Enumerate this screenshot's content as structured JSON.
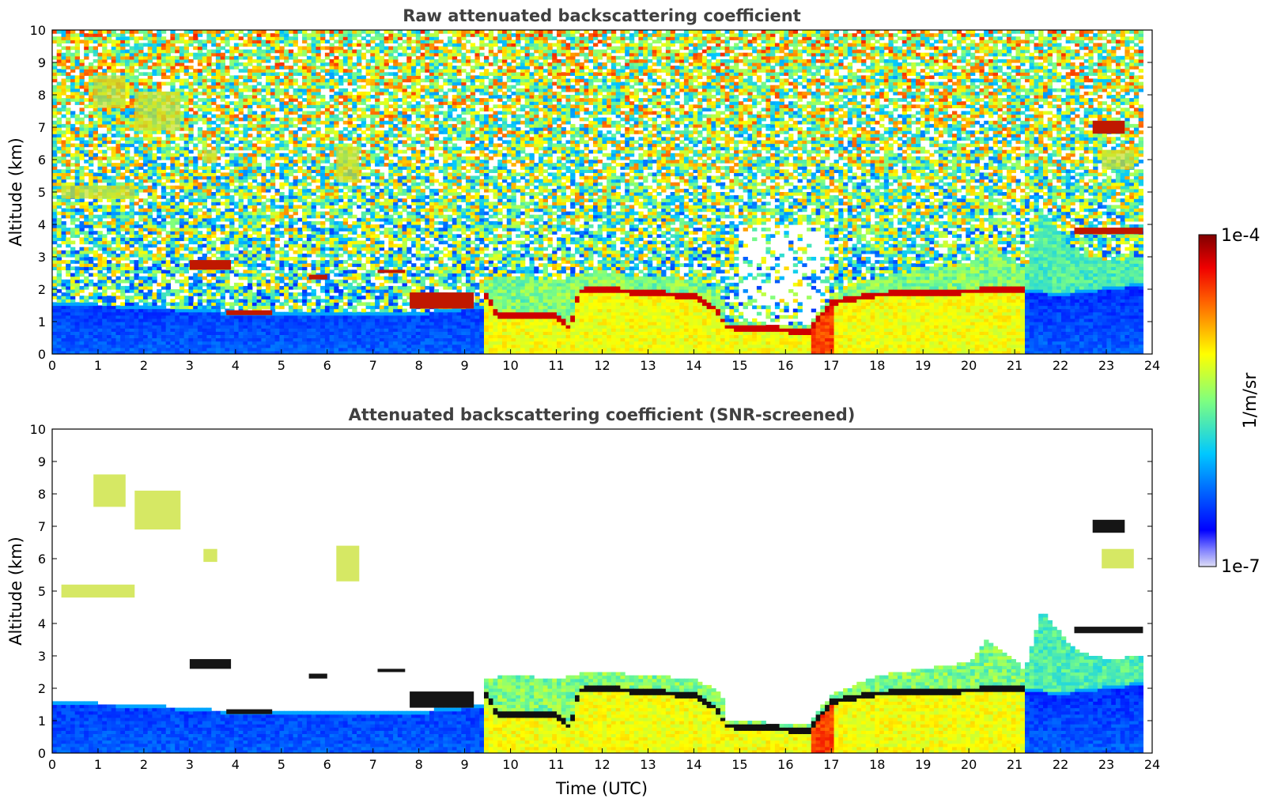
{
  "chart_data": [
    {
      "type": "heatmap",
      "title": "Raw attenuated backscattering coefficient",
      "xlabel": "",
      "ylabel": "Altitude (km)",
      "xlim": [
        0,
        24
      ],
      "ylim": [
        0,
        10
      ],
      "xticks": [
        "0",
        "1",
        "2",
        "3",
        "4",
        "5",
        "6",
        "7",
        "8",
        "9",
        "10",
        "11",
        "12",
        "13",
        "14",
        "15",
        "16",
        "17",
        "18",
        "19",
        "20",
        "21",
        "22",
        "23",
        "24"
      ],
      "yticks": [
        "0",
        "1",
        "2",
        "3",
        "4",
        "5",
        "6",
        "7",
        "8",
        "9",
        "10"
      ],
      "screened": false
    },
    {
      "type": "heatmap",
      "title": "Attenuated backscattering coefficient (SNR-screened)",
      "xlabel": "Time (UTC)",
      "ylabel": "Altitude (km)",
      "xlim": [
        0,
        24
      ],
      "ylim": [
        0,
        10
      ],
      "xticks": [
        "0",
        "1",
        "2",
        "3",
        "4",
        "5",
        "6",
        "7",
        "8",
        "9",
        "10",
        "11",
        "12",
        "13",
        "14",
        "15",
        "16",
        "17",
        "18",
        "19",
        "20",
        "21",
        "22",
        "23",
        "24"
      ],
      "yticks": [
        "0",
        "1",
        "2",
        "3",
        "4",
        "5",
        "6",
        "7",
        "8",
        "9",
        "10"
      ],
      "screened": true
    }
  ],
  "colorbar": {
    "max_label": "1e-4",
    "min_label": "1e-7",
    "label": "1/m/sr",
    "scale": "log",
    "colormap": "jet"
  },
  "features": {
    "aerosol_top_km": [
      [
        0,
        1.6
      ],
      [
        2,
        1.5
      ],
      [
        4,
        1.3
      ],
      [
        6,
        1.25
      ],
      [
        8,
        1.3
      ],
      [
        9.4,
        1.5
      ],
      [
        12,
        1.5
      ],
      [
        14,
        1.1
      ],
      [
        16.5,
        0.7
      ],
      [
        17,
        1.6
      ],
      [
        21.2,
        2.0
      ],
      [
        22,
        1.9
      ],
      [
        23.8,
        2.2
      ]
    ],
    "cloud_base_km": [
      [
        9.5,
        1.8
      ],
      [
        9.7,
        1.2
      ],
      [
        11,
        1.2
      ],
      [
        11.3,
        0.8
      ],
      [
        11.5,
        1.95
      ],
      [
        12,
        2.0
      ],
      [
        13,
        1.9
      ],
      [
        14,
        1.8
      ],
      [
        14.5,
        1.4
      ],
      [
        14.7,
        0.85
      ],
      [
        15.5,
        0.8
      ],
      [
        16.5,
        0.7
      ],
      [
        17,
        1.6
      ],
      [
        18,
        1.85
      ],
      [
        19,
        1.9
      ],
      [
        20,
        1.95
      ],
      [
        21.2,
        2.0
      ]
    ],
    "cloud_top_km": [
      [
        9.5,
        2.3
      ],
      [
        10,
        2.4
      ],
      [
        11,
        2.3
      ],
      [
        11.5,
        2.45
      ],
      [
        12,
        2.5
      ],
      [
        13,
        2.4
      ],
      [
        14,
        2.3
      ],
      [
        14.6,
        1.9
      ],
      [
        14.7,
        1.0
      ],
      [
        16.5,
        0.9
      ],
      [
        17,
        1.8
      ],
      [
        18,
        2.4
      ],
      [
        19,
        2.6
      ],
      [
        20,
        2.8
      ],
      [
        20.4,
        3.5
      ],
      [
        21,
        2.9
      ],
      [
        21.2,
        2.5
      ],
      [
        21.6,
        4.4
      ],
      [
        22.3,
        3.2
      ],
      [
        23,
        2.9
      ],
      [
        23.8,
        3.0
      ]
    ],
    "elevated_layers": [
      {
        "t0": 3.0,
        "t1": 3.9,
        "h0": 2.6,
        "h1": 2.9
      },
      {
        "t0": 3.8,
        "t1": 4.8,
        "h0": 1.2,
        "h1": 1.35
      },
      {
        "t0": 5.6,
        "t1": 6.0,
        "h0": 2.3,
        "h1": 2.45
      },
      {
        "t0": 7.1,
        "t1": 7.7,
        "h0": 2.5,
        "h1": 2.6
      },
      {
        "t0": 7.8,
        "t1": 9.2,
        "h0": 1.4,
        "h1": 1.9
      },
      {
        "t0": 22.3,
        "t1": 23.8,
        "h0": 3.7,
        "h1": 3.9
      },
      {
        "t0": 22.7,
        "t1": 23.4,
        "h0": 6.8,
        "h1": 7.2
      }
    ],
    "cirrus_streaks": [
      {
        "t0": 0.9,
        "t1": 1.6,
        "h0": 7.6,
        "h1": 8.6
      },
      {
        "t0": 1.8,
        "t1": 2.8,
        "h0": 6.9,
        "h1": 8.1
      },
      {
        "t0": 3.3,
        "t1": 3.6,
        "h0": 5.9,
        "h1": 6.3
      },
      {
        "t0": 0.2,
        "t1": 1.8,
        "h0": 4.8,
        "h1": 5.2
      },
      {
        "t0": 6.2,
        "t1": 6.7,
        "h0": 5.3,
        "h1": 6.4
      },
      {
        "t0": 22.9,
        "t1": 23.6,
        "h0": 5.7,
        "h1": 6.3
      }
    ]
  }
}
